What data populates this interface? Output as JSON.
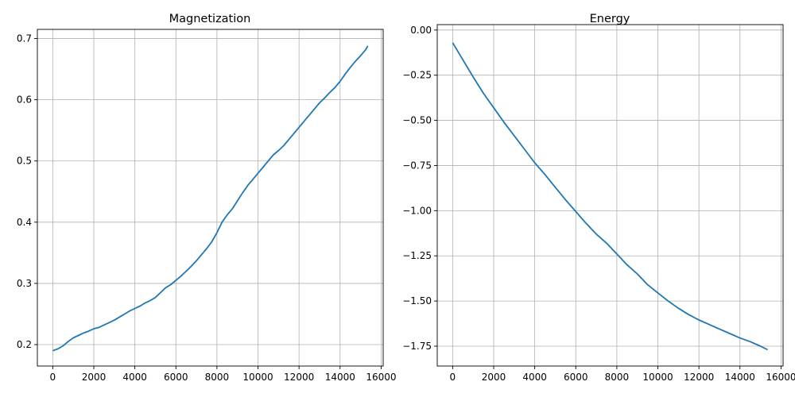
{
  "figure": {
    "line_color": "#1f77b4",
    "grid_color": "#b0b0b0"
  },
  "chart_data": [
    {
      "type": "line",
      "title": "Magnetization",
      "xlabel": "",
      "ylabel": "",
      "xlim": [
        -750,
        16100
      ],
      "ylim": [
        0.165,
        0.715
      ],
      "grid": true,
      "xticks": [
        0,
        2000,
        4000,
        6000,
        8000,
        10000,
        12000,
        14000,
        16000
      ],
      "yticks": [
        0.2,
        0.3,
        0.4,
        0.5,
        0.6,
        0.7
      ],
      "xtick_labels": [
        "0",
        "2000",
        "4000",
        "6000",
        "8000",
        "10000",
        "12000",
        "14000",
        "16000"
      ],
      "ytick_labels": [
        "0.2",
        "0.3",
        "0.4",
        "0.5",
        "0.6",
        "0.7"
      ],
      "series": [
        {
          "x": [
            0,
            250,
            500,
            750,
            1000,
            1250,
            1500,
            1750,
            2000,
            2250,
            2500,
            2750,
            3000,
            3250,
            3500,
            3750,
            4000,
            4250,
            4500,
            4750,
            5000,
            5250,
            5500,
            5750,
            6000,
            6250,
            6500,
            6750,
            7000,
            7250,
            7500,
            7750,
            8000,
            8250,
            8500,
            8750,
            9000,
            9250,
            9500,
            9750,
            10000,
            10250,
            10500,
            10750,
            11000,
            11250,
            11500,
            11750,
            12000,
            12250,
            12500,
            12750,
            13000,
            13250,
            13500,
            13750,
            14000,
            14250,
            14500,
            14750,
            15000,
            15250,
            15350
          ],
          "y": [
            0.19,
            0.193,
            0.198,
            0.205,
            0.211,
            0.215,
            0.219,
            0.222,
            0.226,
            0.228,
            0.232,
            0.236,
            0.24,
            0.245,
            0.25,
            0.255,
            0.259,
            0.263,
            0.268,
            0.272,
            0.277,
            0.285,
            0.293,
            0.298,
            0.305,
            0.312,
            0.32,
            0.328,
            0.337,
            0.347,
            0.357,
            0.368,
            0.383,
            0.4,
            0.412,
            0.422,
            0.435,
            0.448,
            0.46,
            0.47,
            0.48,
            0.49,
            0.5,
            0.51,
            0.517,
            0.525,
            0.535,
            0.545,
            0.555,
            0.565,
            0.575,
            0.585,
            0.595,
            0.603,
            0.612,
            0.62,
            0.63,
            0.642,
            0.653,
            0.663,
            0.672,
            0.682,
            0.688
          ]
        }
      ]
    },
    {
      "type": "line",
      "title": "Energy",
      "xlabel": "",
      "ylabel": "",
      "xlim": [
        -750,
        16100
      ],
      "ylim": [
        -1.86,
        0.03
      ],
      "grid": true,
      "xticks": [
        0,
        2000,
        4000,
        6000,
        8000,
        10000,
        12000,
        14000,
        16000
      ],
      "yticks": [
        0.0,
        -0.25,
        -0.5,
        -0.75,
        -1.0,
        -1.25,
        -1.5,
        -1.75
      ],
      "xtick_labels": [
        "0",
        "2000",
        "4000",
        "6000",
        "8000",
        "10000",
        "12000",
        "14000",
        "16000"
      ],
      "ytick_labels": [
        "0.00",
        "−0.25",
        "−0.50",
        "−0.75",
        "−1.00",
        "−1.25",
        "−1.50",
        "−1.75"
      ],
      "series": [
        {
          "x": [
            0,
            500,
            1000,
            1500,
            2000,
            2500,
            3000,
            3500,
            4000,
            4500,
            5000,
            5500,
            6000,
            6500,
            7000,
            7500,
            8000,
            8500,
            9000,
            9500,
            10000,
            10500,
            11000,
            11500,
            12000,
            12500,
            13000,
            13500,
            14000,
            14500,
            15000,
            15350
          ],
          "y": [
            -0.07,
            -0.165,
            -0.26,
            -0.35,
            -0.43,
            -0.51,
            -0.585,
            -0.66,
            -0.735,
            -0.8,
            -0.87,
            -0.94,
            -1.005,
            -1.07,
            -1.13,
            -1.18,
            -1.24,
            -1.3,
            -1.35,
            -1.41,
            -1.455,
            -1.5,
            -1.54,
            -1.575,
            -1.605,
            -1.63,
            -1.655,
            -1.68,
            -1.705,
            -1.725,
            -1.75,
            -1.77
          ]
        }
      ]
    }
  ]
}
